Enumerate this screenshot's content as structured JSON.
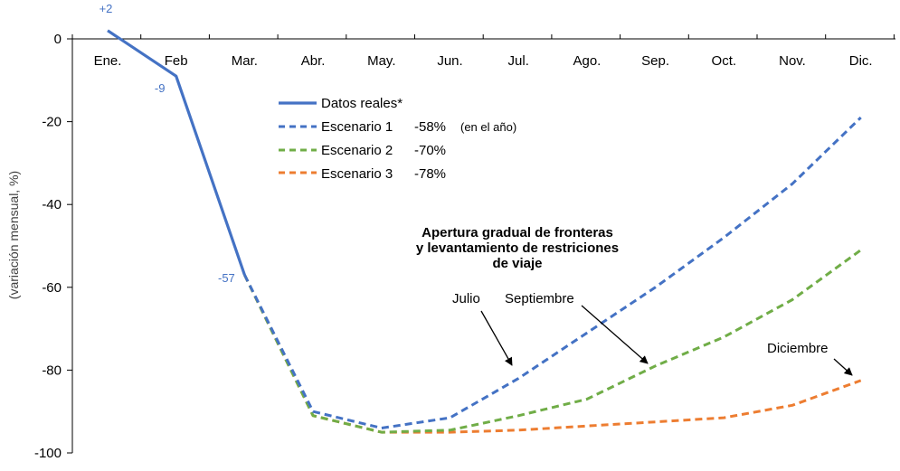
{
  "colors": {
    "actual": "#4472C4",
    "s1": "#4472C4",
    "s2": "#70AD47",
    "s3": "#ED7D31",
    "axis": "#000000",
    "text": "#000000"
  },
  "chart_data": {
    "type": "line",
    "categories": [
      "Ene.",
      "Feb",
      "Mar.",
      "Abr.",
      "May.",
      "Jun.",
      "Jul.",
      "Ago.",
      "Sep.",
      "Oct.",
      "Nov.",
      "Dic."
    ],
    "ylabel": "(variación mensual, %)",
    "ylim": [
      -100,
      0
    ],
    "yticks": [
      0,
      -20,
      -40,
      -60,
      -80,
      -100
    ],
    "xaxis_position": "top (at y = 0)",
    "grid": false,
    "series": [
      {
        "key": "actual",
        "name": "Datos reales*",
        "style": "solid",
        "x": [
          "Ene.",
          "Feb",
          "Mar."
        ],
        "values": [
          2,
          -9,
          -57
        ]
      },
      {
        "key": "s1",
        "name": "Escenario 1",
        "total": "-58%",
        "note": "(en el año)",
        "style": "dashed",
        "x": [
          "Mar.",
          "Abr.",
          "May.",
          "Jun.",
          "Jul.",
          "Ago.",
          "Sep.",
          "Oct.",
          "Nov.",
          "Dic."
        ],
        "values": [
          -57,
          -90,
          -94,
          -91.5,
          -82,
          -71,
          -60,
          -48,
          -35,
          -19
        ]
      },
      {
        "key": "s2",
        "name": "Escenario 2",
        "total": "-70%",
        "style": "dashed",
        "x": [
          "Mar.",
          "Abr.",
          "May.",
          "Jun.",
          "Jul.",
          "Ago.",
          "Sep.",
          "Oct.",
          "Nov.",
          "Dic."
        ],
        "values": [
          -57,
          -91,
          -95,
          -94.5,
          -91,
          -87,
          -79,
          -72,
          -63,
          -51
        ]
      },
      {
        "key": "s3",
        "name": "Escenario 3",
        "total": "-78%",
        "style": "dashed",
        "x": [
          "Mar.",
          "Abr.",
          "May.",
          "Jun.",
          "Jul.",
          "Ago.",
          "Sep.",
          "Oct.",
          "Nov.",
          "Dic."
        ],
        "values": [
          -57,
          -91,
          -95,
          -95,
          -94.5,
          -93.5,
          -92.5,
          -91.5,
          -88.5,
          -82.5
        ]
      }
    ],
    "data_labels": [
      {
        "x": "Ene.",
        "y": 2,
        "text": "+2"
      },
      {
        "x": "Feb",
        "y": -9,
        "text": "-9"
      },
      {
        "x": "Mar.",
        "y": -57,
        "text": "-57"
      }
    ],
    "legend_placement": "center",
    "annotations": {
      "title_lines": [
        "Apertura gradual de fronteras",
        "y levantamiento de restriciones",
        "de viaje"
      ],
      "arrows": [
        {
          "text": "Julio",
          "series": "s1"
        },
        {
          "text": "Septiembre",
          "series": "s2"
        },
        {
          "text": "Diciembre",
          "series": "s3"
        }
      ]
    }
  }
}
